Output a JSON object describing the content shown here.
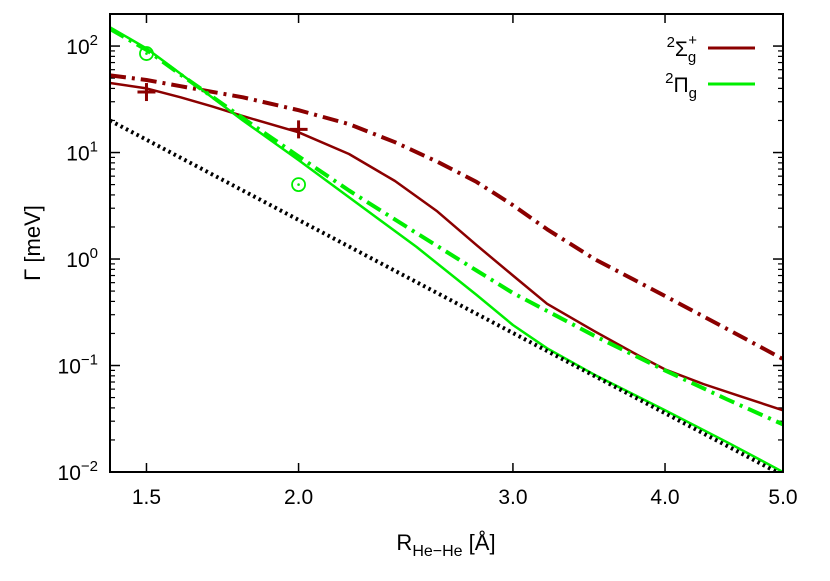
{
  "chart_data": {
    "type": "line",
    "xlabel": {
      "main": "R",
      "sub": "He−He",
      "unit": " [Å]"
    },
    "ylabel": "Γ [meV]",
    "xscale": "log",
    "yscale": "log",
    "xlim": [
      1.4,
      5.0
    ],
    "ylim": [
      0.01,
      200
    ],
    "xticks": [
      {
        "value": 1.5,
        "label": "1.5"
      },
      {
        "value": 2.0,
        "label": "2.0"
      },
      {
        "value": 3.0,
        "label": "3.0"
      },
      {
        "value": 4.0,
        "label": "4.0"
      },
      {
        "value": 5.0,
        "label": "5.0"
      }
    ],
    "yticks": [
      {
        "value": 0.01,
        "mantissa": "10",
        "exp": "−2"
      },
      {
        "value": 0.1,
        "mantissa": "10",
        "exp": "−1"
      },
      {
        "value": 1,
        "mantissa": "10",
        "exp": "0"
      },
      {
        "value": 10,
        "mantissa": "10",
        "exp": "1"
      },
      {
        "value": 100,
        "mantissa": "10",
        "exp": "2"
      }
    ],
    "grid": false,
    "legend": {
      "position": "top-right",
      "entries": [
        {
          "sup": "2",
          "symbol": "Σ",
          "sub": "g",
          "supr": "+",
          "color": "#8b0000"
        },
        {
          "sup": "2",
          "symbol": "Π",
          "sub": "g",
          "supr": "",
          "color": "#00ee00"
        }
      ]
    },
    "series": [
      {
        "key": "sigma_g_solid",
        "color": "#8b0000",
        "style": "solid",
        "width": 2.5,
        "x": [
          1.4,
          1.5,
          1.6,
          1.7,
          1.8,
          2.0,
          2.2,
          2.4,
          2.6,
          2.8,
          3.0,
          3.2,
          3.5,
          3.8,
          4.0,
          4.3,
          4.6,
          5.0
        ],
        "y": [
          45,
          40,
          33,
          27,
          22,
          15.5,
          9.7,
          5.4,
          2.8,
          1.35,
          0.7,
          0.38,
          0.21,
          0.125,
          0.092,
          0.067,
          0.052,
          0.038
        ]
      },
      {
        "key": "sigma_g_dashdot",
        "color": "#8b0000",
        "style": "dashdot",
        "width": 4,
        "x": [
          1.4,
          1.5,
          1.6,
          1.8,
          2.0,
          2.2,
          2.4,
          2.6,
          2.8,
          3.0,
          3.2,
          3.5,
          4.0,
          4.5,
          5.0
        ],
        "y": [
          53,
          48,
          42,
          33,
          25,
          18.5,
          12.5,
          8.2,
          5.3,
          3.2,
          1.9,
          1.0,
          0.45,
          0.22,
          0.115
        ]
      },
      {
        "key": "pi_g_solid",
        "color": "#00ee00",
        "style": "solid",
        "width": 2.5,
        "x": [
          1.4,
          1.5,
          1.6,
          1.8,
          2.0,
          2.2,
          2.5,
          2.8,
          3.0,
          3.2,
          3.5,
          4.0,
          4.5,
          5.0
        ],
        "y": [
          150,
          95,
          55,
          20,
          8.5,
          3.8,
          1.3,
          0.46,
          0.24,
          0.145,
          0.082,
          0.038,
          0.019,
          0.01
        ]
      },
      {
        "key": "pi_g_dashdot",
        "color": "#00ee00",
        "style": "dashdot",
        "width": 4,
        "x": [
          1.4,
          1.5,
          1.6,
          1.8,
          2.0,
          2.2,
          2.5,
          2.8,
          3.0,
          3.5,
          4.0,
          4.5,
          5.0
        ],
        "y": [
          145,
          92,
          54,
          21,
          9.2,
          4.4,
          1.75,
          0.78,
          0.48,
          0.19,
          0.09,
          0.048,
          0.028
        ]
      },
      {
        "key": "reference_dotted",
        "color": "#000000",
        "style": "dotted",
        "width": 4,
        "x": [
          1.4,
          5.0
        ],
        "y": [
          20,
          0.0093
        ]
      }
    ],
    "markers": [
      {
        "shape": "plus",
        "color": "#8b0000",
        "x": 1.5,
        "y": 37
      },
      {
        "shape": "plus",
        "color": "#8b0000",
        "x": 2.0,
        "y": 16.5
      },
      {
        "shape": "circle-dot",
        "color": "#00ee00",
        "x": 1.5,
        "y": 85
      },
      {
        "shape": "circle-dot",
        "color": "#00ee00",
        "x": 2.0,
        "y": 5.0
      }
    ]
  }
}
